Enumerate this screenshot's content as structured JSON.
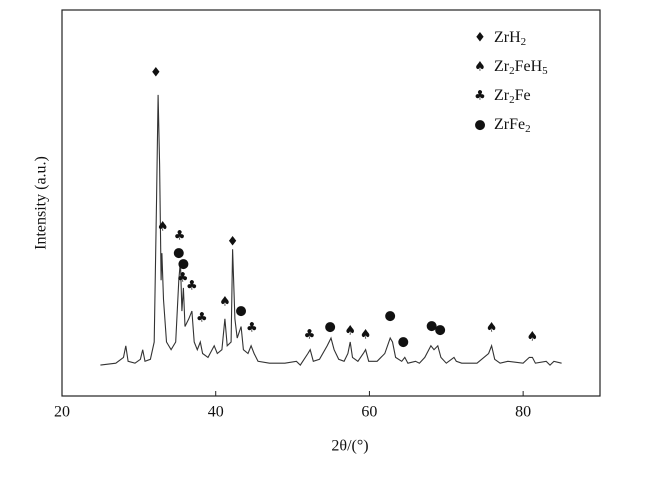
{
  "chart_data": {
    "type": "line",
    "x_label": "2θ/(°)",
    "y_label": "Intensity (a.u.)",
    "xlim": [
      20,
      90
    ],
    "ylim": [
      0,
      100
    ],
    "xticks": [
      20,
      40,
      60,
      80
    ],
    "color": "#333333",
    "x": [
      25,
      27,
      28,
      28.3,
      28.6,
      29.5,
      30.2,
      30.5,
      30.8,
      31.5,
      32,
      32.3,
      32.5,
      32.7,
      32.9,
      33.0,
      33.2,
      33.6,
      34.2,
      34.8,
      35.2,
      35.4,
      35.6,
      35.8,
      36.0,
      36.5,
      36.9,
      37.2,
      37.6,
      38.0,
      38.3,
      39,
      39.8,
      40.2,
      40.8,
      41.2,
      41.5,
      42,
      42.2,
      42.5,
      42.8,
      43.3,
      43.6,
      44.2,
      44.6,
      45,
      45.5,
      47,
      49,
      50.5,
      51,
      52,
      52.3,
      52.7,
      53.5,
      54.5,
      55,
      55.4,
      56,
      56.7,
      57.2,
      57.5,
      57.8,
      58.5,
      59.2,
      59.5,
      59.9,
      61,
      62,
      62.7,
      63,
      63.4,
      64.2,
      64.6,
      65,
      66,
      66.5,
      67.2,
      68,
      68.4,
      68.9,
      69.3,
      70,
      71,
      71.3,
      72,
      74,
      75.5,
      75.9,
      76.3,
      77,
      78,
      80,
      80.8,
      81.2,
      81.6,
      83,
      83.5,
      84,
      85
    ],
    "values": [
      8,
      8.5,
      10,
      13,
      9,
      8.5,
      9.5,
      12,
      9,
      9.5,
      14,
      50,
      78,
      60,
      30,
      37,
      25,
      14,
      12,
      14,
      30,
      35,
      22,
      28,
      18,
      20,
      22,
      14,
      12,
      14,
      11,
      10,
      13,
      11,
      12,
      20,
      13,
      14,
      38,
      20,
      15,
      18,
      12,
      11,
      13,
      11,
      9,
      8.5,
      8.5,
      9,
      8,
      11,
      12,
      9,
      9.5,
      13,
      15,
      12,
      9.5,
      9,
      11,
      14,
      10,
      9,
      11,
      12,
      9,
      9,
      11,
      15,
      14,
      10,
      9,
      10,
      8.5,
      9,
      8.5,
      10,
      13,
      12,
      13,
      10,
      8.5,
      10,
      9,
      8.5,
      8.5,
      11,
      13,
      9.5,
      8.5,
      9,
      8.5,
      10,
      10,
      8.5,
      9,
      8,
      9,
      8.5
    ],
    "phases": [
      {
        "name": "ZrH2",
        "marker": "♦",
        "x": [
          32.2,
          42.2
        ],
        "y": [
          83.7,
          39.9
        ]
      },
      {
        "name": "Zr2FeH5",
        "marker": "♠",
        "x": [
          33.1,
          41.2,
          57.5,
          59.5,
          75.9,
          81.2
        ],
        "y": [
          43.8,
          24.4,
          16.8,
          15.8,
          17.6,
          15.3
        ]
      },
      {
        "name": "Zr2Fe",
        "marker": "♣",
        "x": [
          35.3,
          35.7,
          36.9,
          38.2,
          44.7,
          52.2
        ],
        "y": [
          41.5,
          30.6,
          28.5,
          20.2,
          17.6,
          15.8
        ]
      },
      {
        "name": "ZrFe2",
        "marker": "●",
        "x": [
          35.2,
          35.8,
          43.3,
          54.9,
          62.7,
          64.4,
          68.1,
          69.2
        ],
        "y": [
          37.0,
          34.2,
          22.0,
          17.9,
          20.7,
          14.0,
          18.1,
          17.1
        ]
      }
    ]
  }
}
